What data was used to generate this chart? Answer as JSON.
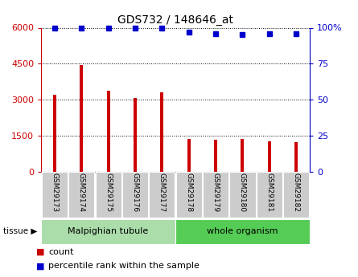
{
  "title": "GDS732 / 148646_at",
  "samples": [
    "GSM29173",
    "GSM29174",
    "GSM29175",
    "GSM29176",
    "GSM29177",
    "GSM29178",
    "GSM29179",
    "GSM29180",
    "GSM29181",
    "GSM29182"
  ],
  "counts": [
    3200,
    4450,
    3380,
    3060,
    3320,
    1370,
    1340,
    1355,
    1260,
    1250
  ],
  "percentiles": [
    100,
    100,
    100,
    100,
    100,
    97,
    96,
    95,
    96,
    96
  ],
  "ylim_left": [
    0,
    6000
  ],
  "ylim_right": [
    0,
    100
  ],
  "yticks_left": [
    0,
    1500,
    3000,
    4500,
    6000
  ],
  "yticks_right": [
    0,
    25,
    50,
    75,
    100
  ],
  "bar_color": "#cc0000",
  "dot_color": "#0000cc",
  "tissue_groups": [
    {
      "label": "Malpighian tubule",
      "start": 0,
      "end": 5,
      "color": "#aaddaa"
    },
    {
      "label": "whole organism",
      "start": 5,
      "end": 10,
      "color": "#55cc55"
    }
  ],
  "legend_count_label": "count",
  "legend_pct_label": "percentile rank within the sample",
  "tissue_label": "tissue",
  "tick_bg_color": "#cccccc",
  "grid_color": "#000000",
  "left_tick_color": "#cc0000",
  "right_tick_color": "#0000cc",
  "bar_width": 0.12
}
